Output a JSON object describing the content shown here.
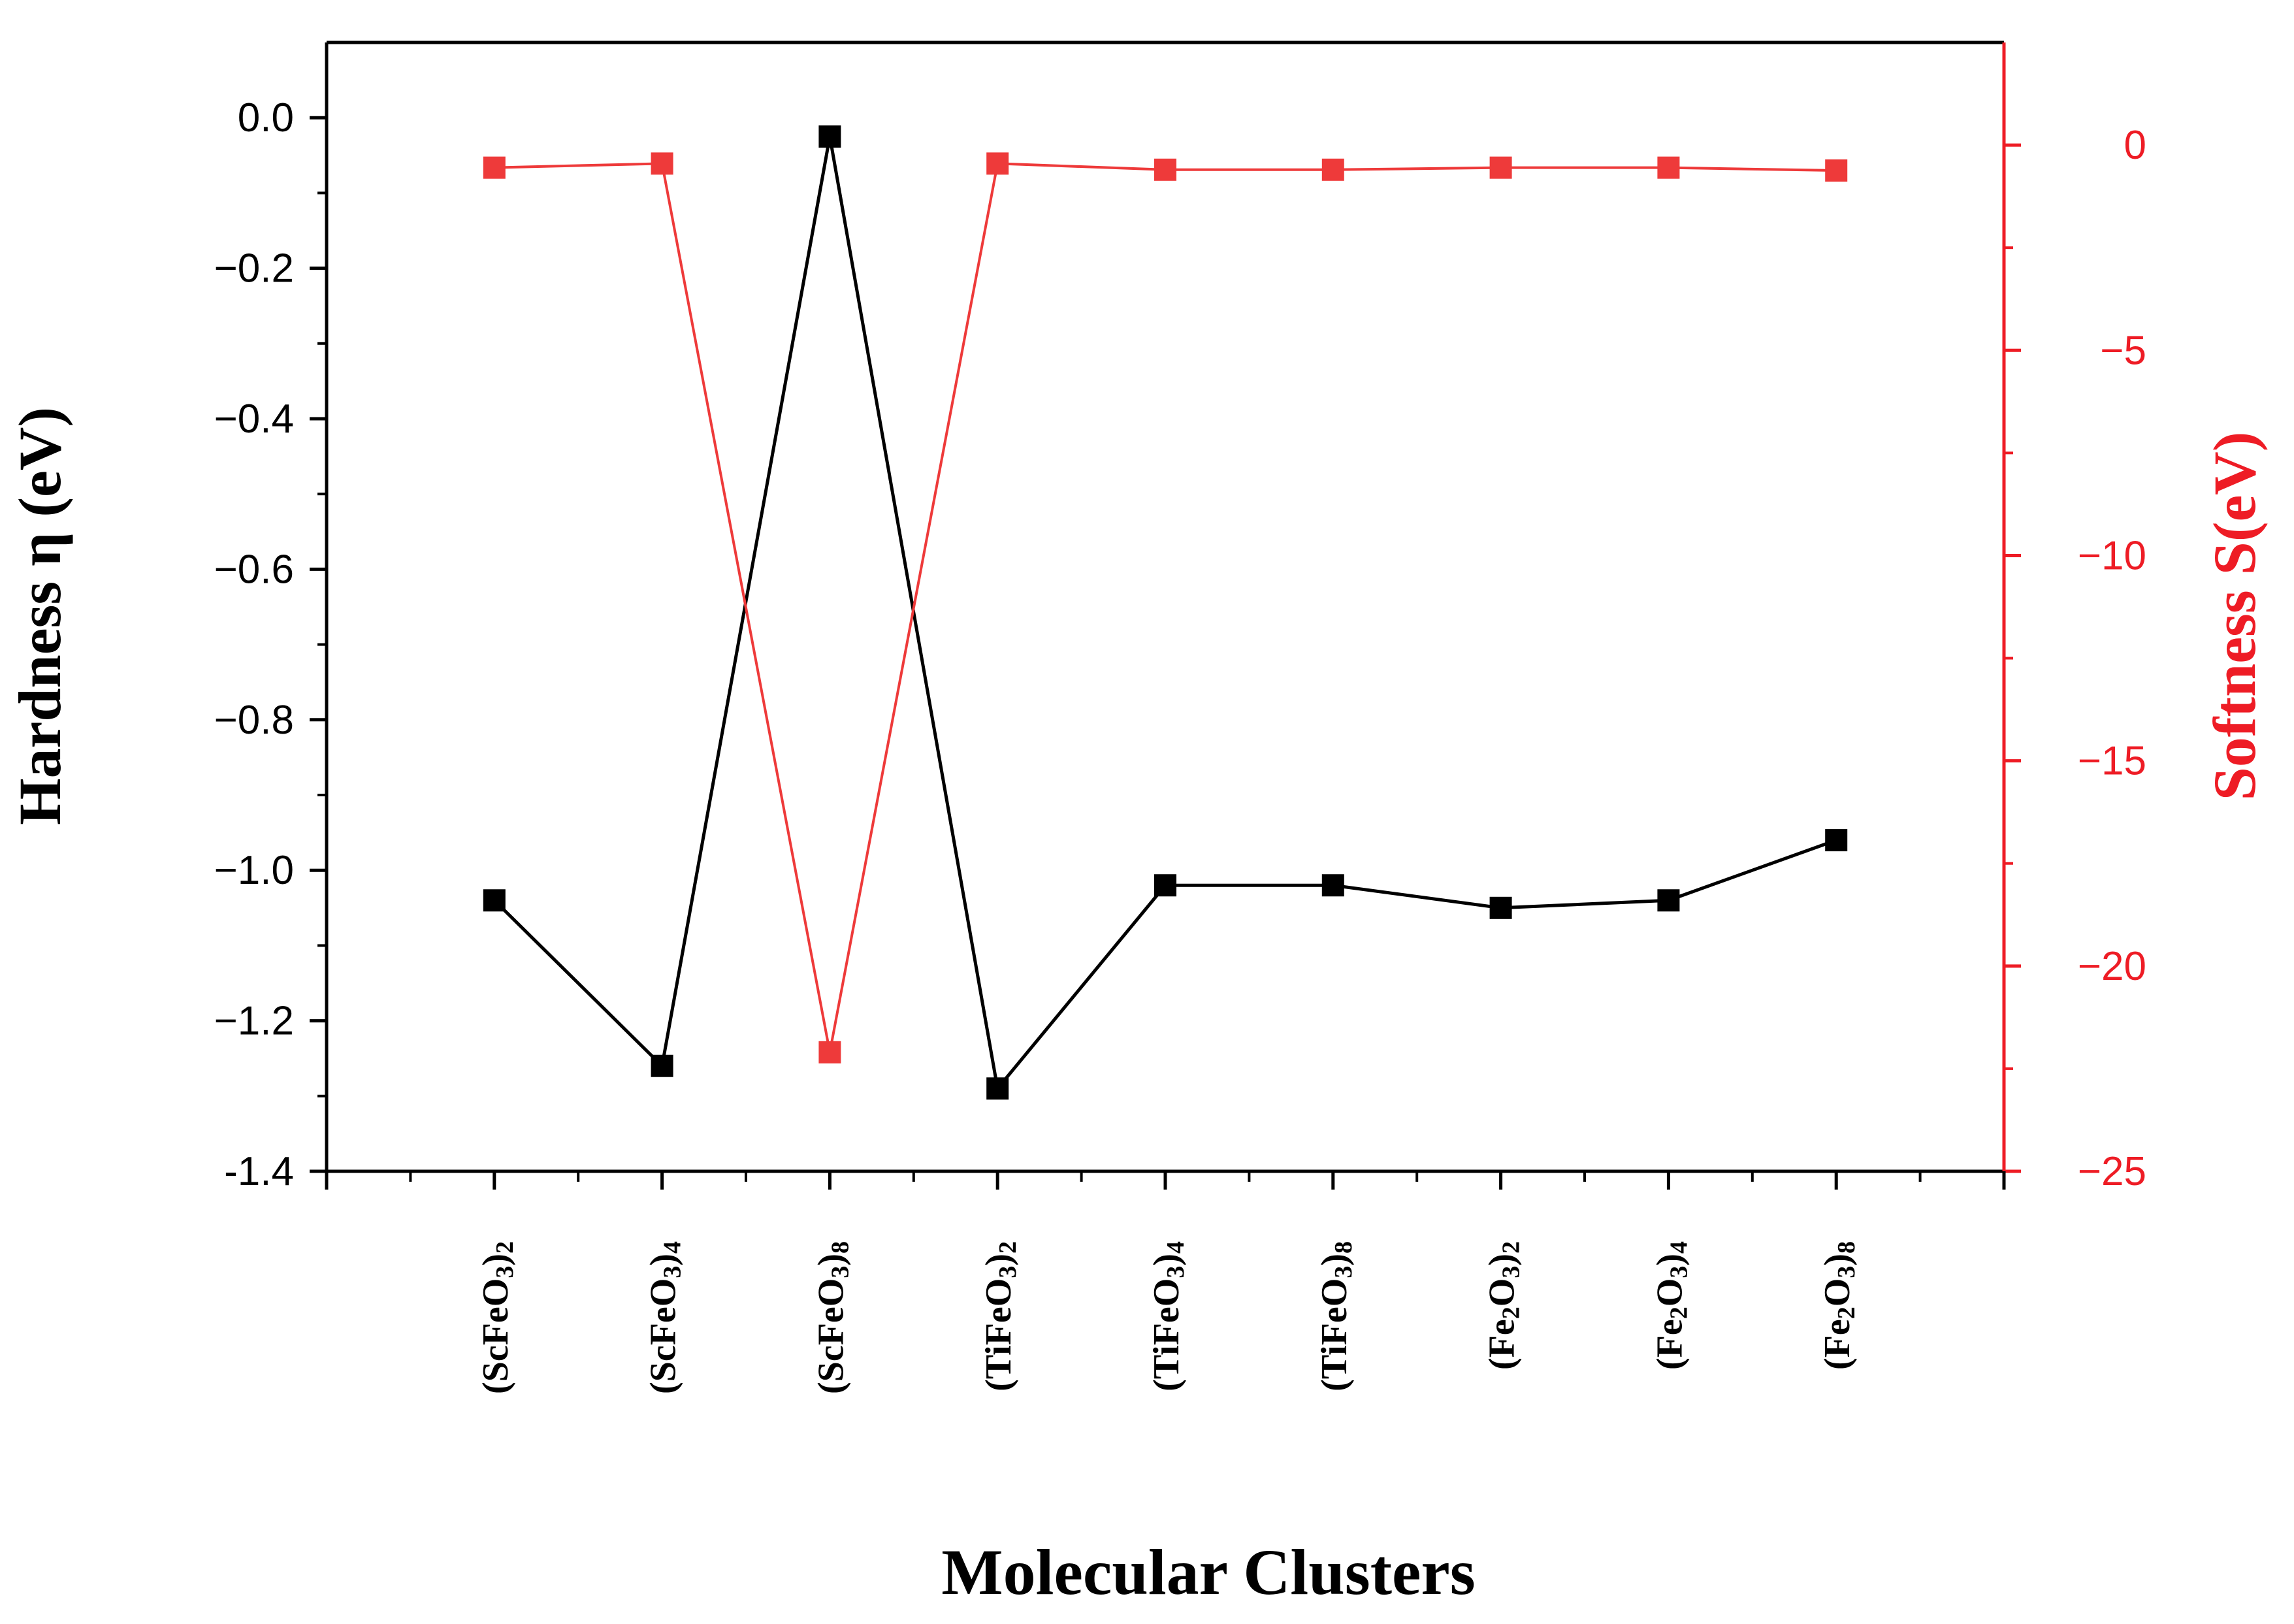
{
  "chart_data": {
    "type": "line",
    "xlabel": "Molecular Clusters",
    "categories": [
      {
        "base": "(ScFeO",
        "sub3": "3",
        "close": ")",
        "n": "2"
      },
      {
        "base": "(ScFeO",
        "sub3": "3",
        "close": ")",
        "n": "4"
      },
      {
        "base": "(ScFeO",
        "sub3": "3",
        "close": ")",
        "n": "8"
      },
      {
        "base": "(TiFeO",
        "sub3": "3",
        "close": ")",
        "n": "2"
      },
      {
        "base": "(TiFeO",
        "sub3": "3",
        "close": ")",
        "n": "4"
      },
      {
        "base": "(TiFeO",
        "sub3": "3",
        "close": ")",
        "n": "8"
      },
      {
        "base": "(Fe",
        "sub2": "2",
        "mid": "O",
        "sub3": "3",
        "close": ")",
        "n": "2"
      },
      {
        "base": "(Fe",
        "sub2": "2",
        "mid": "O",
        "sub3": "3",
        "close": ")",
        "n": "4"
      },
      {
        "base": "(Fe",
        "sub2": "2",
        "mid": "O",
        "sub3": "3",
        "close": ")",
        "n": "8"
      }
    ],
    "category_text": [
      "(ScFeO3)2",
      "(ScFeO3)4",
      "(ScFeO3)8",
      "(TiFeO3)2",
      "(TiFeO3)4",
      "(TiFeO3)8",
      "(Fe2O3)2",
      "(Fe2O3)4",
      "(Fe2O3)8"
    ],
    "x_range": [
      0,
      10
    ],
    "left_axis": {
      "label": "Hardness η (eV)",
      "range": [
        -1.4,
        0.1
      ],
      "ticks": [
        0.0,
        -0.2,
        -0.4,
        -0.6,
        -0.8,
        -1.0,
        -1.2,
        -1.4
      ],
      "tick_labels": [
        "0.0",
        "−0.2",
        "−0.4",
        "−0.6",
        "−0.8",
        "−1.0",
        "−1.2",
        "-1.4"
      ],
      "color": "#000000"
    },
    "right_axis": {
      "label": "Softness S(eV)",
      "range": [
        -25,
        2.5
      ],
      "ticks": [
        0,
        -5,
        -10,
        -15,
        -20,
        -25
      ],
      "tick_labels": [
        "0",
        "−5",
        "−10",
        "−15",
        "−20",
        "−25"
      ],
      "color": "#ee1c25"
    },
    "series": [
      {
        "name": "Hardness η",
        "axis": "left",
        "color": "#000000",
        "marker": "square",
        "values": [
          -1.04,
          -1.26,
          -0.025,
          -1.29,
          -1.02,
          -1.02,
          -1.05,
          -1.04,
          -0.96
        ]
      },
      {
        "name": "Softness S",
        "axis": "right",
        "color": "#ee3a3a",
        "marker": "square",
        "values": [
          -0.55,
          -0.45,
          -22.1,
          -0.45,
          -0.6,
          -0.6,
          -0.55,
          -0.55,
          -0.62
        ]
      }
    ]
  }
}
